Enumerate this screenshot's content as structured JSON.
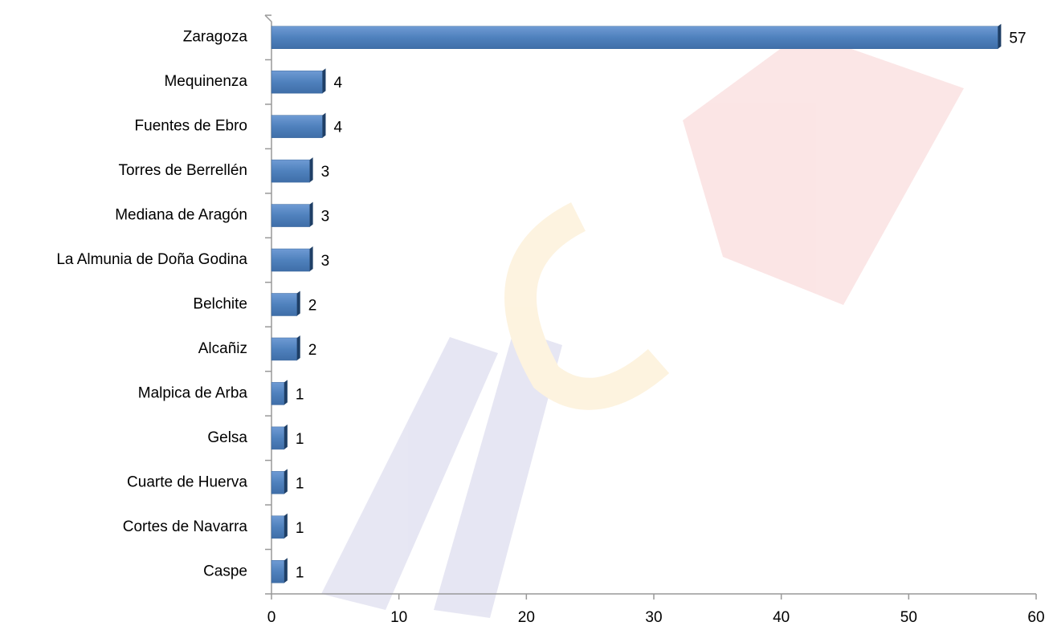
{
  "chart_data": {
    "type": "bar",
    "orientation": "horizontal",
    "categories": [
      "Zaragoza",
      "Mequinenza",
      "Fuentes de Ebro",
      "Torres de Berrellén",
      "Mediana de Aragón",
      "La Almunia de Doña Godina",
      "Belchite",
      "Alcañiz",
      "Malpica de Arba",
      "Gelsa",
      "Cuarte de Huerva",
      "Cortes de Navarra",
      "Caspe"
    ],
    "values": [
      57,
      4,
      4,
      3,
      3,
      3,
      2,
      2,
      1,
      1,
      1,
      1,
      1
    ],
    "color": "#4f81bd",
    "xlim": [
      0,
      60
    ],
    "xticks": [
      0,
      10,
      20,
      30,
      40,
      50,
      60
    ],
    "grid": false
  }
}
